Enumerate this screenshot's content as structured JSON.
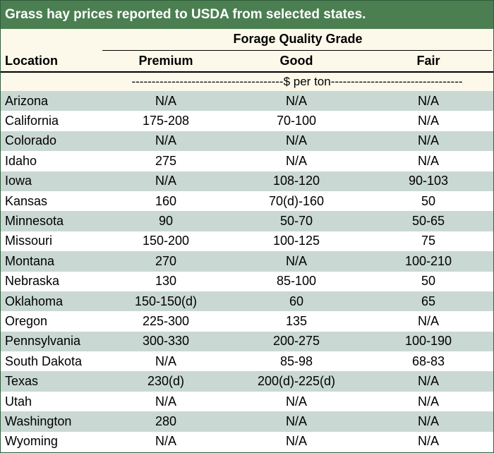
{
  "title": "Grass hay prices reported to USDA from selected states.",
  "header": {
    "group": "Forage Quality Grade",
    "location": "Location",
    "premium": "Premium",
    "good": "Good",
    "fair": "Fair",
    "unit": "--------------------------------------$ per ton---------------------------------"
  },
  "rows": [
    {
      "location": "Arizona",
      "premium": "N/A",
      "good": "N/A",
      "fair": "N/A"
    },
    {
      "location": "California",
      "premium": "175-208",
      "good": "70-100",
      "fair": "N/A"
    },
    {
      "location": "Colorado",
      "premium": "N/A",
      "good": "N/A",
      "fair": "N/A"
    },
    {
      "location": "Idaho",
      "premium": "275",
      "good": "N/A",
      "fair": "N/A"
    },
    {
      "location": "Iowa",
      "premium": "N/A",
      "good": "108-120",
      "fair": "90-103"
    },
    {
      "location": "Kansas",
      "premium": "160",
      "good": "70(d)-160",
      "fair": "50"
    },
    {
      "location": "Minnesota",
      "premium": "90",
      "good": "50-70",
      "fair": "50-65"
    },
    {
      "location": "Missouri",
      "premium": "150-200",
      "good": "100-125",
      "fair": "75"
    },
    {
      "location": "Montana",
      "premium": "270",
      "good": "N/A",
      "fair": "100-210"
    },
    {
      "location": "Nebraska",
      "premium": "130",
      "good": "85-100",
      "fair": "50"
    },
    {
      "location": "Oklahoma",
      "premium": "150-150(d)",
      "good": "60",
      "fair": "65"
    },
    {
      "location": "Oregon",
      "premium": "225-300",
      "good": "135",
      "fair": "N/A"
    },
    {
      "location": "Pennsylvania",
      "premium": "300-330",
      "good": "200-275",
      "fair": "100-190"
    },
    {
      "location": "South Dakota",
      "premium": "N/A",
      "good": "85-98",
      "fair": "68-83"
    },
    {
      "location": "Texas",
      "premium": "230(d)",
      "good": "200(d)-225(d)",
      "fair": "N/A"
    },
    {
      "location": "Utah",
      "premium": "N/A",
      "good": "N/A",
      "fair": "N/A"
    },
    {
      "location": "Washington",
      "premium": "280",
      "good": "N/A",
      "fair": "N/A"
    },
    {
      "location": "Wyoming",
      "premium": "N/A",
      "good": "N/A",
      "fair": "N/A"
    }
  ]
}
